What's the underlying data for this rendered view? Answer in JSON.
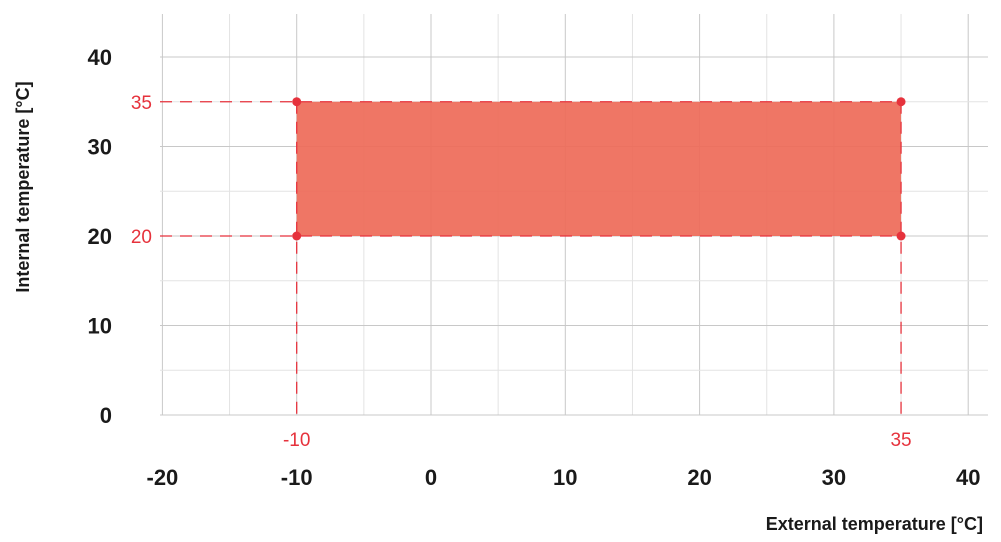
{
  "chart_data": {
    "type": "area",
    "xlabel": "External temperature [°C]",
    "ylabel": "Internal temperature [°C]",
    "xlim": [
      -22,
      42
    ],
    "ylim": [
      0,
      45
    ],
    "x_ticks": [
      "-20",
      "-10",
      "0",
      "10",
      "20",
      "30",
      "40"
    ],
    "y_ticks": [
      "0",
      "10",
      "20",
      "30",
      "40"
    ],
    "grid": true,
    "region": {
      "x": [
        -10,
        35
      ],
      "y": [
        20,
        35
      ],
      "corners": [
        [
          -10,
          20
        ],
        [
          35,
          20
        ],
        [
          35,
          35
        ],
        [
          -10,
          35
        ]
      ]
    },
    "annotations": {
      "x_min_label": "-10",
      "x_max_label": "35",
      "y_min_label": "20",
      "y_max_label": "35"
    },
    "colors": {
      "fill": "#ee6a58",
      "accent": "#e6323c",
      "grid_major": "#c8c8c8",
      "grid_minor": "#e3e3e3",
      "text": "#1a1a1a"
    }
  }
}
